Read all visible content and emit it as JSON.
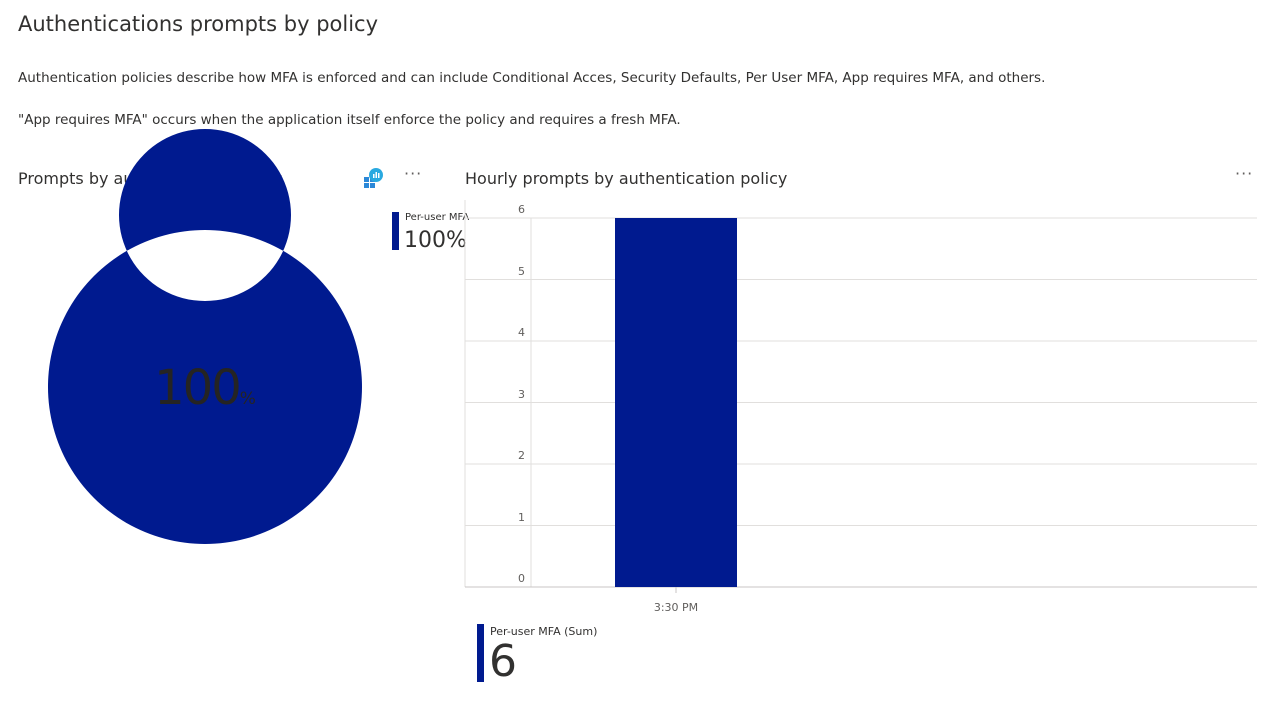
{
  "page": {
    "title": "Authentications prompts by policy",
    "description1": "Authentication policies describe how MFA is enforced and can include Conditional Acces, Security Defaults, Per User MFA, App requires MFA, and others.",
    "description2": "\"App requires MFA\" occurs when the application itself enforce the policy and requires a fresh MFA."
  },
  "colors": {
    "series": "#001a8f",
    "grid": "#e1dfdd"
  },
  "donut_panel": {
    "title": "Prompts by authentication policy",
    "more_label": "···",
    "insights_icon": "insights-icon",
    "center_value": "100",
    "center_unit": "%",
    "legend_name": "Per-user MFA",
    "legend_value": "100%"
  },
  "bar_panel": {
    "title": "Hourly prompts by authentication policy",
    "more_label": "···",
    "legend_name": "Per-user MFA (Sum)",
    "legend_value": "6"
  },
  "chart_data": [
    {
      "type": "pie",
      "title": "Prompts by authentication policy",
      "categories": [
        "Per-user MFA"
      ],
      "values": [
        100
      ],
      "unit": "%"
    },
    {
      "type": "bar",
      "title": "Hourly prompts by authentication policy",
      "categories": [
        "3:30 PM"
      ],
      "series": [
        {
          "name": "Per-user MFA (Sum)",
          "values": [
            6
          ]
        }
      ],
      "yticks": [
        0,
        1,
        2,
        3,
        4,
        5,
        6
      ],
      "ylim": [
        0,
        6
      ],
      "grid": true,
      "legend": "bottom-left"
    }
  ]
}
